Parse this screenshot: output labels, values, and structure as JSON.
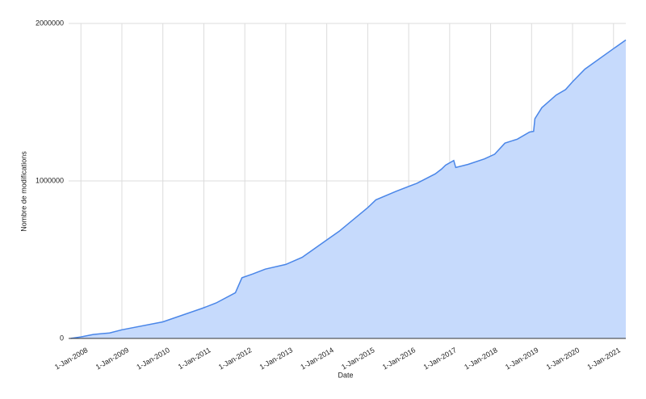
{
  "chart_data": {
    "type": "area",
    "x_label": "Date",
    "y_label": "Nombre de modifications",
    "x": [
      2007.75,
      2008.0,
      2008.3,
      2008.7,
      2009.0,
      2010.0,
      2011.0,
      2011.3,
      2011.77,
      2011.93,
      2012.2,
      2012.5,
      2013.0,
      2013.4,
      2014.0,
      2014.3,
      2015.0,
      2015.2,
      2015.7,
      2016.2,
      2016.65,
      2016.8,
      2016.9,
      2017.1,
      2017.15,
      2017.45,
      2017.85,
      2018.1,
      2018.35,
      2018.65,
      2018.95,
      2019.05,
      2019.08,
      2019.25,
      2019.6,
      2019.83,
      2020.0,
      2020.3,
      2021.0,
      2021.3
    ],
    "values": [
      0,
      10000,
      25000,
      35000,
      55000,
      105000,
      195000,
      225000,
      290000,
      385000,
      410000,
      440000,
      470000,
      515000,
      625000,
      680000,
      830000,
      880000,
      935000,
      985000,
      1045000,
      1075000,
      1100000,
      1130000,
      1085000,
      1105000,
      1140000,
      1170000,
      1240000,
      1265000,
      1310000,
      1315000,
      1395000,
      1465000,
      1545000,
      1580000,
      1630000,
      1710000,
      1840000,
      1895000
    ],
    "color": "#4a86e8",
    "fill_color": "#c6dafc",
    "xlim": [
      2007.7,
      2021.3
    ],
    "xticks": [
      {
        "value": 2008,
        "label": "1-Jan-2008"
      },
      {
        "value": 2009,
        "label": "1-Jan-2009"
      },
      {
        "value": 2010,
        "label": "1-Jan-2010"
      },
      {
        "value": 2011,
        "label": "1-Jan-2011"
      },
      {
        "value": 2012,
        "label": "1-Jan-2012"
      },
      {
        "value": 2013,
        "label": "1-Jan-2013"
      },
      {
        "value": 2014,
        "label": "1-Jan-2014"
      },
      {
        "value": 2015,
        "label": "1-Jan-2015"
      },
      {
        "value": 2016,
        "label": "1-Jan-2016"
      },
      {
        "value": 2017,
        "label": "1-Jan-2017"
      },
      {
        "value": 2018,
        "label": "1-Jan-2018"
      },
      {
        "value": 2019,
        "label": "1-Jan-2019"
      },
      {
        "value": 2020,
        "label": "1-Jan-2020"
      },
      {
        "value": 2021,
        "label": "1-Jan-2021"
      }
    ],
    "ylim": [
      0,
      2000000
    ],
    "yticks": [
      0,
      1000000,
      2000000
    ],
    "grid": true
  }
}
